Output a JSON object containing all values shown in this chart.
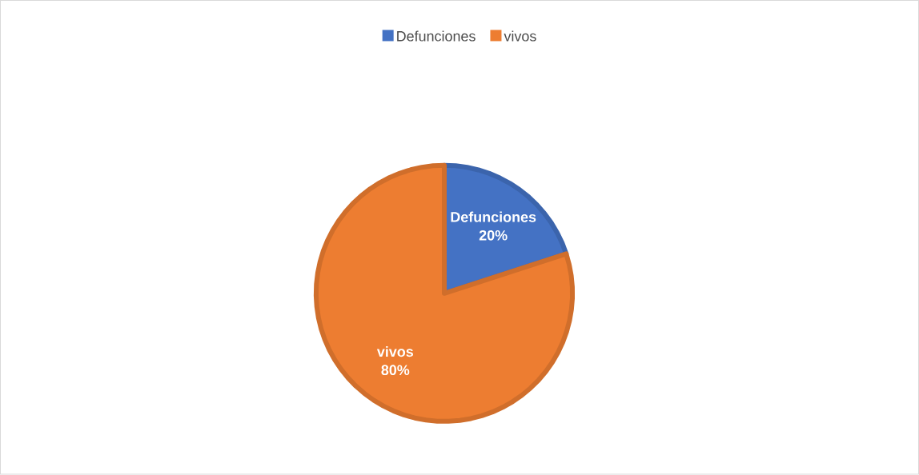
{
  "chart_data": {
    "type": "pie",
    "categories": [
      "Defunciones",
      "vivos"
    ],
    "values": [
      20,
      80
    ],
    "colors": [
      "#4472c4",
      "#ed7d31"
    ],
    "value_labels": [
      "20%",
      "80%"
    ],
    "legend": "top"
  }
}
